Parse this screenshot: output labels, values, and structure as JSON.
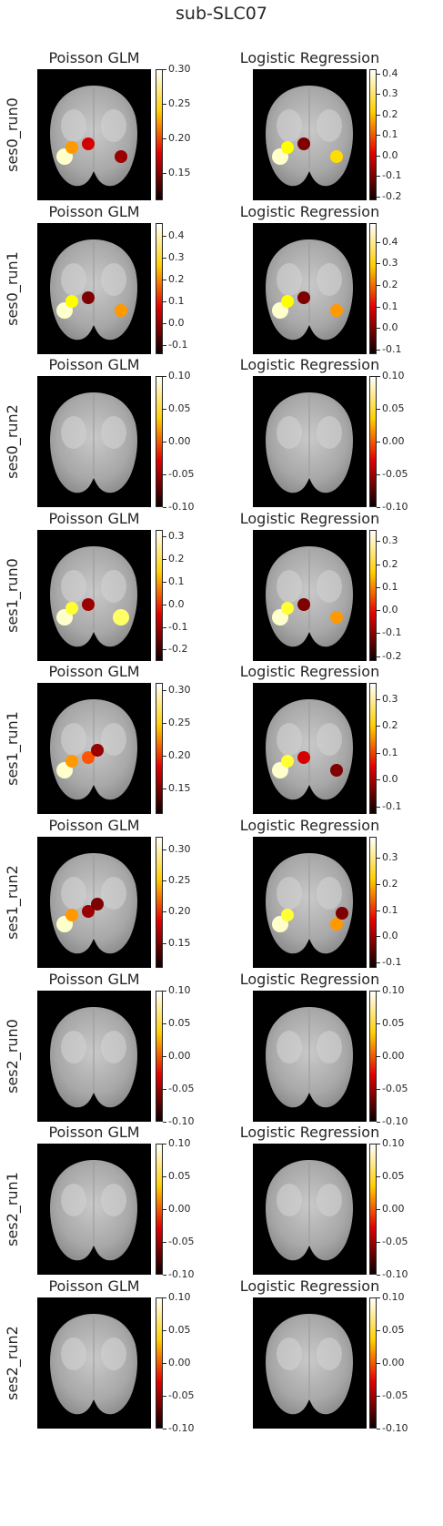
{
  "suptitle": "sub-SLC07",
  "chart_data": {
    "type": "heatmap",
    "colormap": "hot",
    "background": "grayscale brain atlas",
    "columns": [
      "Poisson GLM",
      "Logistic Regression"
    ],
    "rows": [
      {
        "label": "ses0_run0",
        "panels": [
          {
            "title": "Poisson GLM",
            "ticks": [
              "0.30",
              "0.25",
              "0.20",
              "0.15"
            ],
            "range": [
              0.11,
              0.3
            ],
            "blobs": [
              {
                "side": "left",
                "level": 0.95
              },
              {
                "side": "left",
                "level": 0.6
              },
              {
                "side": "center",
                "level": 0.3
              },
              {
                "side": "right",
                "level": 0.2
              }
            ]
          },
          {
            "title": "Logistic Regression",
            "ticks": [
              "0.4",
              "0.3",
              "0.2",
              "0.1",
              "0.0",
              "-0.1",
              "-0.2"
            ],
            "range": [
              -0.22,
              0.42
            ],
            "blobs": [
              {
                "side": "left",
                "level": 0.95
              },
              {
                "side": "left",
                "level": 0.75
              },
              {
                "side": "right",
                "level": 0.7
              },
              {
                "side": "center",
                "level": 0.15
              }
            ]
          }
        ]
      },
      {
        "label": "ses0_run1",
        "panels": [
          {
            "title": "Poisson GLM",
            "ticks": [
              "0.4",
              "0.3",
              "0.2",
              "0.1",
              "0.0",
              "-0.1"
            ],
            "range": [
              -0.14,
              0.46
            ],
            "blobs": [
              {
                "side": "left",
                "level": 0.95
              },
              {
                "side": "left",
                "level": 0.75
              },
              {
                "side": "center",
                "level": 0.15
              },
              {
                "side": "right",
                "level": 0.6
              }
            ]
          },
          {
            "title": "Logistic Regression",
            "ticks": [
              "0.4",
              "0.3",
              "0.2",
              "0.1",
              "0.0",
              "-0.1"
            ],
            "range": [
              -0.12,
              0.49
            ],
            "blobs": [
              {
                "side": "left",
                "level": 0.95
              },
              {
                "side": "left",
                "level": 0.75
              },
              {
                "side": "right",
                "level": 0.6
              },
              {
                "side": "center",
                "level": 0.15
              }
            ]
          }
        ]
      },
      {
        "label": "ses0_run2",
        "panels": [
          {
            "title": "Poisson GLM",
            "ticks": [
              "0.10",
              "0.05",
              "0.00",
              "-0.05",
              "-0.10"
            ],
            "range": [
              -0.1,
              0.1
            ],
            "blobs": []
          },
          {
            "title": "Logistic Regression",
            "ticks": [
              "0.10",
              "0.05",
              "0.00",
              "-0.05",
              "-0.10"
            ],
            "range": [
              -0.1,
              0.1
            ],
            "blobs": []
          }
        ]
      },
      {
        "label": "ses1_run0",
        "panels": [
          {
            "title": "Poisson GLM",
            "ticks": [
              "0.3",
              "0.2",
              "0.1",
              "0.0",
              "-0.1",
              "-0.2"
            ],
            "range": [
              -0.25,
              0.33
            ],
            "blobs": [
              {
                "side": "left",
                "level": 0.95
              },
              {
                "side": "left",
                "level": 0.8
              },
              {
                "side": "right",
                "level": 0.85
              },
              {
                "side": "center",
                "level": 0.2
              }
            ]
          },
          {
            "title": "Logistic Regression",
            "ticks": [
              "0.3",
              "0.2",
              "0.1",
              "0.0",
              "-0.1",
              "-0.2"
            ],
            "range": [
              -0.22,
              0.35
            ],
            "blobs": [
              {
                "side": "left",
                "level": 0.95
              },
              {
                "side": "left",
                "level": 0.8
              },
              {
                "side": "center",
                "level": 0.15
              },
              {
                "side": "right",
                "level": 0.6
              }
            ]
          }
        ]
      },
      {
        "label": "ses1_run1",
        "panels": [
          {
            "title": "Poisson GLM",
            "ticks": [
              "0.30",
              "0.25",
              "0.20",
              "0.15"
            ],
            "range": [
              0.11,
              0.31
            ],
            "blobs": [
              {
                "side": "left",
                "level": 0.95
              },
              {
                "side": "left",
                "level": 0.6
              },
              {
                "side": "center",
                "level": 0.5
              },
              {
                "side": "center",
                "level": 0.2
              }
            ]
          },
          {
            "title": "Logistic Regression",
            "ticks": [
              "0.3",
              "0.2",
              "0.1",
              "0.0",
              "-0.1"
            ],
            "range": [
              -0.13,
              0.36
            ],
            "blobs": [
              {
                "side": "left",
                "level": 0.95
              },
              {
                "side": "left",
                "level": 0.8
              },
              {
                "side": "right",
                "level": 0.15
              },
              {
                "side": "center",
                "level": 0.3
              }
            ]
          }
        ]
      },
      {
        "label": "ses1_run2",
        "panels": [
          {
            "title": "Poisson GLM",
            "ticks": [
              "0.30",
              "0.25",
              "0.20",
              "0.15"
            ],
            "range": [
              0.11,
              0.32
            ],
            "blobs": [
              {
                "side": "left",
                "level": 0.95
              },
              {
                "side": "left",
                "level": 0.6
              },
              {
                "side": "center",
                "level": 0.2
              },
              {
                "side": "center",
                "level": 0.15
              }
            ]
          },
          {
            "title": "Logistic Regression",
            "ticks": [
              "0.3",
              "0.2",
              "0.1",
              "0.0",
              "-0.1"
            ],
            "range": [
              -0.12,
              0.38
            ],
            "blobs": [
              {
                "side": "left",
                "level": 0.95
              },
              {
                "side": "left",
                "level": 0.8
              },
              {
                "side": "right",
                "level": 0.6
              },
              {
                "side": "right",
                "level": 0.15
              }
            ]
          }
        ]
      },
      {
        "label": "ses2_run0",
        "panels": [
          {
            "title": "Poisson GLM",
            "ticks": [
              "0.10",
              "0.05",
              "0.00",
              "-0.05",
              "-0.10"
            ],
            "range": [
              -0.1,
              0.1
            ],
            "blobs": []
          },
          {
            "title": "Logistic Regression",
            "ticks": [
              "0.10",
              "0.05",
              "0.00",
              "-0.05",
              "-0.10"
            ],
            "range": [
              -0.1,
              0.1
            ],
            "blobs": []
          }
        ]
      },
      {
        "label": "ses2_run1",
        "panels": [
          {
            "title": "Poisson GLM",
            "ticks": [
              "0.10",
              "0.05",
              "0.00",
              "-0.05",
              "-0.10"
            ],
            "range": [
              -0.1,
              0.1
            ],
            "blobs": []
          },
          {
            "title": "Logistic Regression",
            "ticks": [
              "0.10",
              "0.05",
              "0.00",
              "-0.05",
              "-0.10"
            ],
            "range": [
              -0.1,
              0.1
            ],
            "blobs": []
          }
        ]
      },
      {
        "label": "ses2_run2",
        "panels": [
          {
            "title": "Poisson GLM",
            "ticks": [
              "0.10",
              "0.05",
              "0.00",
              "-0.05",
              "-0.10"
            ],
            "range": [
              -0.1,
              0.1
            ],
            "blobs": []
          },
          {
            "title": "Logistic Regression",
            "ticks": [
              "0.10",
              "0.05",
              "0.00",
              "-0.05",
              "-0.10"
            ],
            "range": [
              -0.1,
              0.1
            ],
            "blobs": []
          }
        ]
      }
    ]
  }
}
